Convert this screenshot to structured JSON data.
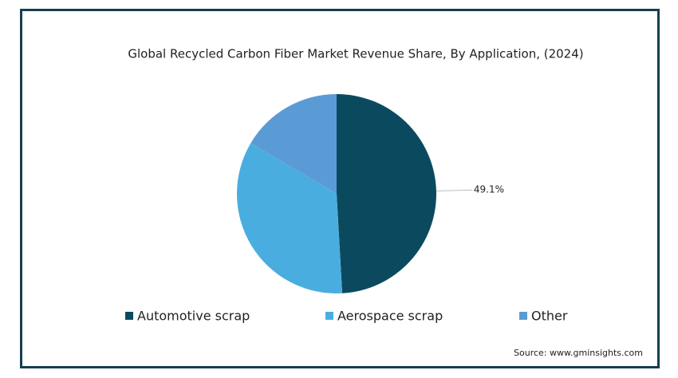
{
  "chart_data": {
    "type": "pie",
    "title": "Global Recycled Carbon Fiber Market Revenue Share, By Application, (2024)",
    "categories": [
      "Automotive scrap",
      "Aerospace scrap",
      "Other"
    ],
    "values": [
      49.1,
      34.4,
      16.5
    ],
    "value_labels": [
      "49.1%",
      null,
      null
    ],
    "colors": [
      "#0b4a5e",
      "#4aade0",
      "#5b9bd5"
    ],
    "source": "Source: www.gminsights.com"
  }
}
